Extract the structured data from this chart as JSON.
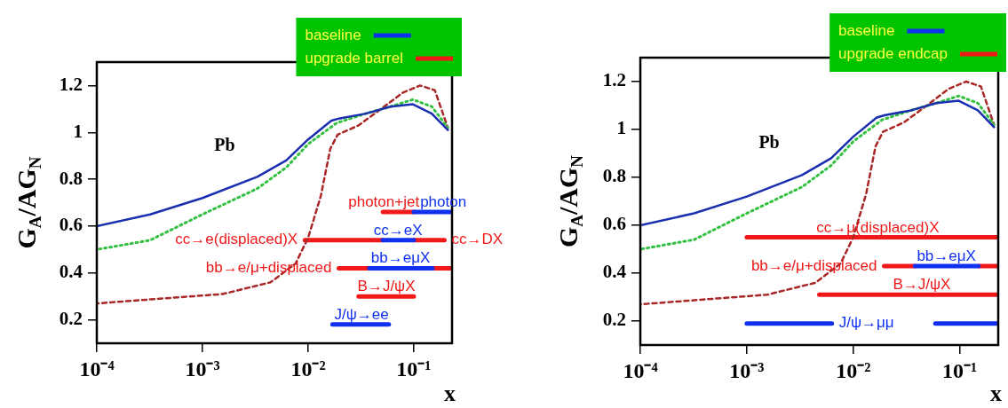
{
  "chart_data": [
    {
      "type": "line",
      "xlabel": "x",
      "ylabel": "G$_{A}$/AG$_{N}$",
      "log": "x",
      "legend": "top right",
      "xlim": [
        0.0001,
        0.23
      ],
      "ylim": [
        0.1,
        1.3
      ],
      "xticks": [
        {
          "value": 0.0001,
          "label": "10⁻⁴"
        },
        {
          "value": 0.001,
          "label": "10⁻³"
        },
        {
          "value": 0.01,
          "label": "10⁻²"
        },
        {
          "value": 0.1,
          "label": "10⁻¹"
        }
      ],
      "yticks": [
        0.2,
        0.4,
        0.6,
        0.8,
        1,
        1.2
      ],
      "series": [
        {
          "color": "#1a2fb0",
          "line_style": "solid",
          "x": [
            0.0001,
            0.00032,
            0.001,
            0.0033,
            0.0062,
            0.01,
            0.0166,
            0.02,
            0.035,
            0.06,
            0.098,
            0.148,
            0.21
          ],
          "values": [
            0.6,
            0.65,
            0.72,
            0.81,
            0.88,
            0.97,
            1.05,
            1.06,
            1.08,
            1.11,
            1.12,
            1.08,
            1.01
          ]
        },
        {
          "color": "#33c040",
          "line_style": "dotted",
          "x": [
            0.0001,
            0.00032,
            0.001,
            0.0033,
            0.0062,
            0.01,
            0.0186,
            0.035,
            0.06,
            0.098,
            0.148,
            0.21
          ],
          "values": [
            0.5,
            0.54,
            0.65,
            0.76,
            0.85,
            0.95,
            1.04,
            1.08,
            1.11,
            1.14,
            1.11,
            1.02
          ]
        },
        {
          "color": "#a82828",
          "line_style": "dashed",
          "x": [
            0.0001,
            0.00039,
            0.00155,
            0.0044,
            0.0076,
            0.01,
            0.0132,
            0.0162,
            0.019,
            0.03,
            0.049,
            0.079,
            0.115,
            0.158,
            0.21
          ],
          "values": [
            0.27,
            0.29,
            0.31,
            0.36,
            0.44,
            0.55,
            0.73,
            0.93,
            0.99,
            1.03,
            1.1,
            1.17,
            1.2,
            1.18,
            1.02
          ]
        },
        {
          "name": "baseline",
          "color": "#1030f0",
          "line_style": "solid",
          "x": [
            0.1,
            0.22,
            null,
            0.051,
            0.1,
            null,
            0.038,
            0.15,
            null,
            0.017,
            0.058
          ],
          "values": [
            0.66,
            0.66,
            null,
            0.54,
            0.54,
            null,
            0.42,
            0.42,
            null,
            0.18,
            0.18
          ]
        },
        {
          "name": "upgrade barrel",
          "color": "#f01818",
          "line_style": "solid",
          "x": [
            0.051,
            0.1,
            null,
            0.0093,
            0.051,
            null,
            0.1,
            0.195,
            null,
            0.0195,
            0.038,
            null,
            0.15,
            0.22,
            null,
            0.03,
            0.1
          ],
          "values": [
            0.66,
            0.66,
            null,
            0.54,
            0.54,
            null,
            0.54,
            0.54,
            null,
            0.42,
            0.42,
            null,
            0.42,
            0.42,
            null,
            0.3,
            0.3
          ]
        }
      ],
      "annotations": [
        "Pb",
        {
          "text": "photon+jet",
          "x": 0.052,
          "y": 0.66
        },
        {
          "text": "photon",
          "x": 0.19,
          "y": 0.66
        },
        {
          "text": "cc→e(displaced)X",
          "x": 0.0093,
          "y": 0.54
        },
        {
          "text": "cc→eX",
          "x": 0.071,
          "y": 0.54
        },
        {
          "text": "cc→DX",
          "x": 0.195,
          "y": 0.54
        },
        {
          "text": "bb→e/μ+displaced",
          "x": 0.0195,
          "y": 0.42
        },
        {
          "text": "bb→eμX",
          "x": 0.075,
          "y": 0.42
        },
        {
          "text": "B→J/ψX",
          "x": 0.055,
          "y": 0.3
        },
        {
          "text": "J/ψ→ee",
          "x": 0.032,
          "y": 0.18
        }
      ]
    },
    {
      "type": "line",
      "xlabel": "x",
      "ylabel": "G$_{A}$/AG$_{N}$",
      "log": "x",
      "legend": "top right",
      "xlim": [
        0.0001,
        0.23
      ],
      "ylim": [
        0.1,
        1.3
      ],
      "xticks": [
        {
          "value": 0.0001,
          "label": "10⁻⁴"
        },
        {
          "value": 0.001,
          "label": "10⁻³"
        },
        {
          "value": 0.01,
          "label": "10⁻²"
        },
        {
          "value": 0.1,
          "label": "10⁻¹"
        }
      ],
      "yticks": [
        0.2,
        0.4,
        0.6,
        0.8,
        1,
        1.2
      ],
      "series": [
        {
          "color": "#1a2fb0",
          "line_style": "solid",
          "x": [
            0.0001,
            0.00032,
            0.001,
            0.0033,
            0.0062,
            0.01,
            0.0166,
            0.02,
            0.035,
            0.06,
            0.098,
            0.148,
            0.21
          ],
          "values": [
            0.6,
            0.65,
            0.72,
            0.81,
            0.88,
            0.97,
            1.05,
            1.06,
            1.08,
            1.11,
            1.12,
            1.08,
            1.01
          ]
        },
        {
          "color": "#33c040",
          "line_style": "dotted",
          "x": [
            0.0001,
            0.00032,
            0.001,
            0.0033,
            0.0062,
            0.01,
            0.0186,
            0.035,
            0.06,
            0.098,
            0.148,
            0.21
          ],
          "values": [
            0.5,
            0.54,
            0.65,
            0.76,
            0.85,
            0.95,
            1.04,
            1.08,
            1.11,
            1.14,
            1.11,
            1.02
          ]
        },
        {
          "color": "#a82828",
          "line_style": "dashed",
          "x": [
            0.0001,
            0.00039,
            0.00155,
            0.0044,
            0.0076,
            0.01,
            0.0132,
            0.0162,
            0.019,
            0.03,
            0.049,
            0.079,
            0.115,
            0.158,
            0.21
          ],
          "values": [
            0.27,
            0.29,
            0.31,
            0.36,
            0.44,
            0.55,
            0.73,
            0.93,
            0.99,
            1.03,
            1.1,
            1.17,
            1.2,
            1.18,
            1.02
          ]
        },
        {
          "name": "baseline",
          "color": "#1030f0",
          "line_style": "solid",
          "x": [
            0.038,
            0.15,
            null,
            0.001,
            0.0063,
            null,
            0.059,
            0.23
          ],
          "values": [
            0.43,
            0.43,
            null,
            0.19,
            0.19,
            null,
            0.19,
            0.19
          ]
        },
        {
          "name": "upgrade endcap",
          "color": "#f01818",
          "line_style": "solid",
          "x": [
            0.001,
            0.23,
            null,
            0.0195,
            0.038,
            null,
            0.15,
            0.23,
            null,
            0.0048,
            0.23
          ],
          "values": [
            0.55,
            0.55,
            null,
            0.43,
            0.43,
            null,
            0.43,
            0.43,
            null,
            0.31,
            0.31
          ]
        }
      ],
      "annotations": [
        "Pb",
        {
          "text": "cc→μ(displaced)X",
          "x": 0.017,
          "y": 0.55
        },
        {
          "text": "bb→e/μ+displaced",
          "x": 0.0195,
          "y": 0.43
        },
        {
          "text": "bb→eμX",
          "x": 0.075,
          "y": 0.43
        },
        {
          "text": "B→J/ψX",
          "x": 0.044,
          "y": 0.31
        },
        {
          "text": "J/ψ→μμ",
          "x": 0.0063,
          "y": 0.19
        }
      ]
    }
  ]
}
